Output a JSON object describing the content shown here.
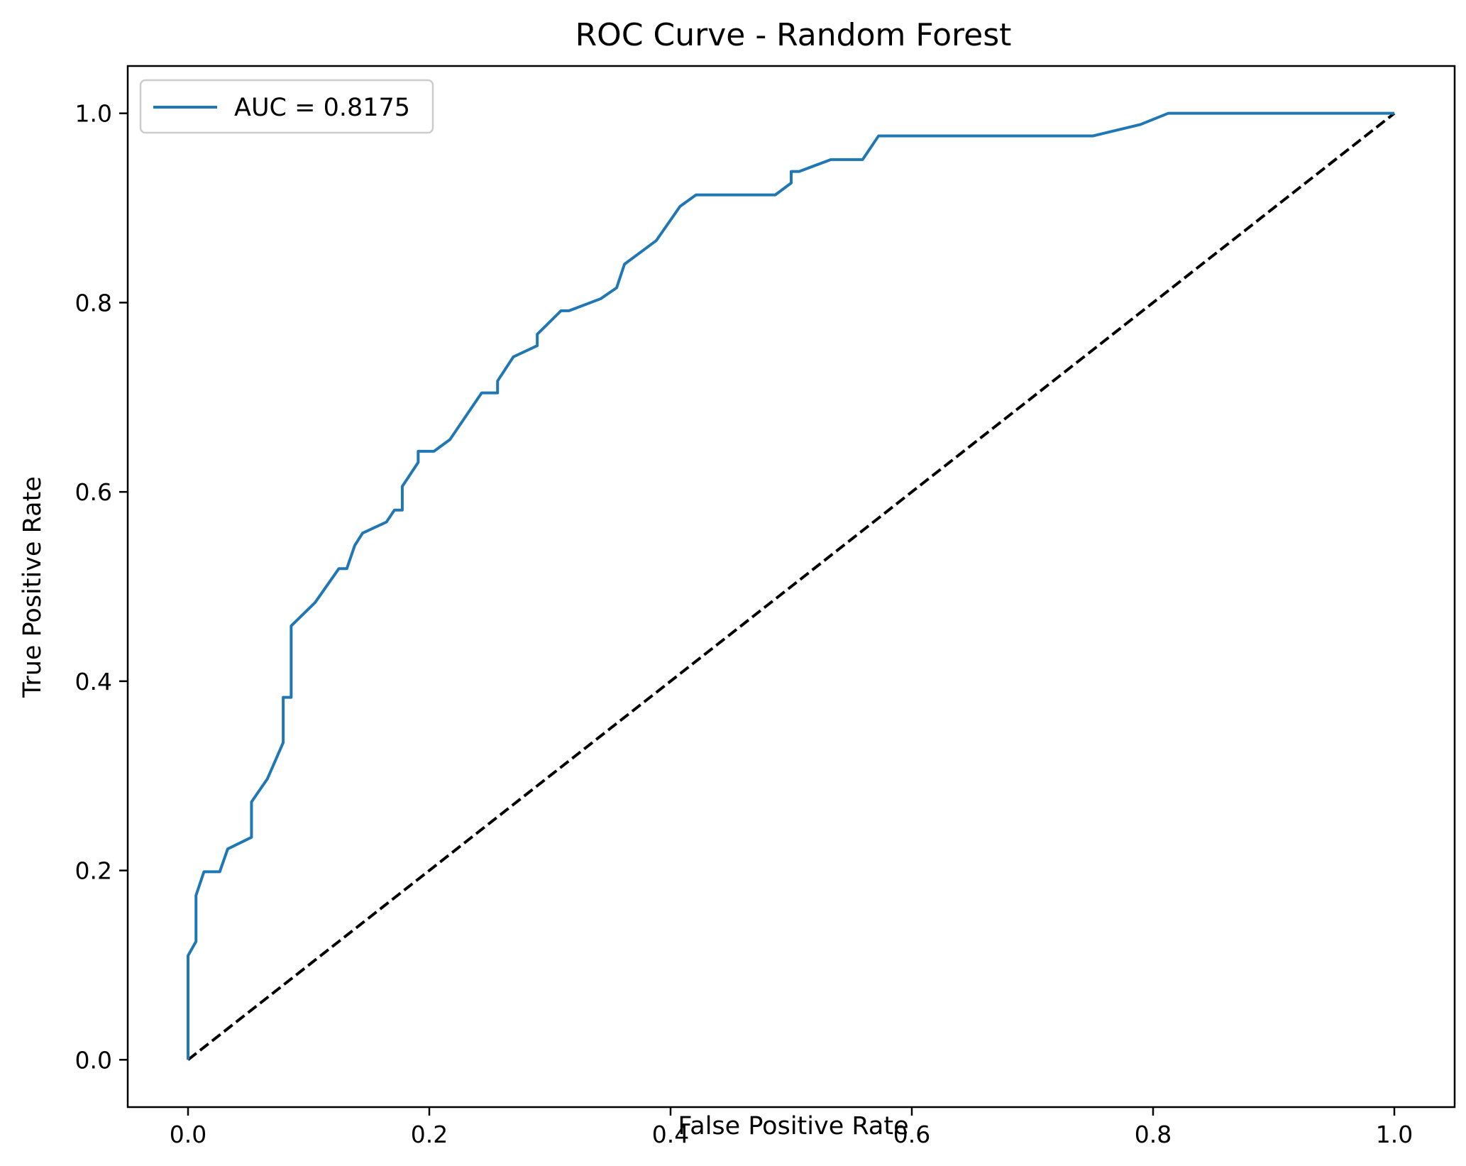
{
  "chart_data": {
    "type": "line",
    "title": "ROC Curve - Random Forest",
    "xlabel": "False Positive Rate",
    "ylabel": "True Positive Rate",
    "xlim": [
      -0.05,
      1.05
    ],
    "ylim": [
      -0.05,
      1.05
    ],
    "xticks": [
      0.0,
      0.2,
      0.4,
      0.6,
      0.8,
      1.0
    ],
    "yticks": [
      0.0,
      0.2,
      0.4,
      0.6,
      0.8,
      1.0
    ],
    "xtick_labels": [
      "0.0",
      "0.2",
      "0.4",
      "0.6",
      "0.8",
      "1.0"
    ],
    "ytick_labels": [
      "0.0",
      "0.2",
      "0.4",
      "0.6",
      "0.8",
      "1.0"
    ],
    "grid": false,
    "legend": {
      "placement": "upper-left",
      "entries": [
        "AUC = 0.8175"
      ]
    },
    "series": [
      {
        "name": "AUC = 0.8175",
        "color": "#1f77b4",
        "style": "solid",
        "x": [
          0.0,
          0.0,
          0.0066,
          0.0066,
          0.0132,
          0.0263,
          0.0329,
          0.0526,
          0.0526,
          0.0658,
          0.0789,
          0.0789,
          0.0855,
          0.0855,
          0.1053,
          0.125,
          0.1316,
          0.1382,
          0.1447,
          0.1645,
          0.1711,
          0.1776,
          0.1776,
          0.1908,
          0.1908,
          0.2039,
          0.2171,
          0.2434,
          0.2566,
          0.2566,
          0.2697,
          0.2895,
          0.2895,
          0.3092,
          0.3158,
          0.3421,
          0.3553,
          0.3618,
          0.3882,
          0.4079,
          0.4211,
          0.4868,
          0.5,
          0.5,
          0.5066,
          0.5329,
          0.5592,
          0.5724,
          0.5855,
          0.75,
          0.7895,
          0.8125,
          0.85,
          1.0
        ],
        "y": [
          0.0,
          0.11,
          0.125,
          0.1736,
          0.1987,
          0.1987,
          0.2228,
          0.2351,
          0.2724,
          0.2969,
          0.3352,
          0.3829,
          0.3829,
          0.4584,
          0.4831,
          0.5189,
          0.5189,
          0.5434,
          0.5565,
          0.5682,
          0.5808,
          0.5808,
          0.6058,
          0.6312,
          0.6429,
          0.6429,
          0.6553,
          0.7046,
          0.7046,
          0.7172,
          0.7427,
          0.7545,
          0.7666,
          0.7914,
          0.7914,
          0.8041,
          0.8157,
          0.8406,
          0.8656,
          0.9017,
          0.9138,
          0.9138,
          0.9264,
          0.9386,
          0.9386,
          0.9511,
          0.9511,
          0.9761,
          0.9761,
          0.9761,
          0.9882,
          1.0,
          1.0,
          1.0
        ]
      },
      {
        "color": "#000000",
        "style": "dashed",
        "x": [
          0.0,
          1.0
        ],
        "y": [
          0.0,
          1.0
        ]
      }
    ]
  }
}
